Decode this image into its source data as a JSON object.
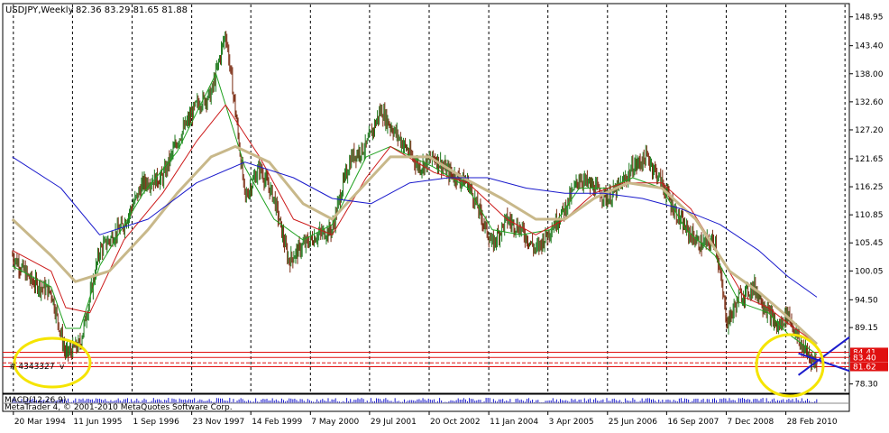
{
  "header": {
    "symbol": "USDJPY,Weekly",
    "ohlc": "82.36 83.29 81.65 81.88"
  },
  "overlay": {
    "order_text": "# 4343327",
    "order_suffix": "v"
  },
  "footer": {
    "indicator_text": "MACD(12,26,9)",
    "copyright": "MetaTrader 4, © 2001-2010 MetaQuotes Software Corp."
  },
  "colors": {
    "candle_up": "#1f7a1f",
    "candle_down": "#7a2a10",
    "ma_fast": "#1fa11f",
    "ma_mid": "#cc1a1a",
    "ma_slow": "#c8b88a",
    "ma_long": "#1a1acc",
    "circle": "#f5e400",
    "price_tag": "#e01010",
    "triangle": "#1a1acc"
  },
  "annotations": {
    "circles": [
      "highlight-1995-low",
      "highlight-2010-low"
    ]
  },
  "chart_data": {
    "type": "candlestick",
    "xlabel": "",
    "ylabel": "",
    "ylim": [
      76.5,
      151.5
    ],
    "x_tick_labels": [
      "20 Mar 1994",
      "11 Jun 1995",
      "1 Sep 1996",
      "23 Nov 1997",
      "14 Feb 1999",
      "7 May 2000",
      "29 Jul 2001",
      "20 Oct 2002",
      "11 Jan 2004",
      "3 Apr 2005",
      "25 Jun 2006",
      "16 Sep 2007",
      "7 Dec 2008",
      "28 Feb 2010"
    ],
    "y_tick_values": [
      78.3,
      83.62,
      89.15,
      94.5,
      100.05,
      105.45,
      110.85,
      116.25,
      121.65,
      127.2,
      132.6,
      138.0,
      143.4,
      148.95
    ],
    "y_tick_labels": [
      "78.30",
      "83.62",
      "89.15",
      "94.50",
      "100.05",
      "105.45",
      "110.85",
      "116.25",
      "121.65",
      "127.20",
      "132.60",
      "138.00",
      "143.40",
      "148.95"
    ],
    "price_tags": [
      {
        "value": 84.41,
        "label": "84.41"
      },
      {
        "value": 83.4,
        "label": "83.40"
      },
      {
        "value": 81.62,
        "label": "81.62"
      }
    ],
    "horizontal_levels": [
      84.41,
      83.4,
      82.36,
      81.62
    ],
    "price_path": {
      "x": [
        1994.2,
        1994.6,
        1995.0,
        1995.3,
        1995.6,
        1996.0,
        1996.5,
        1996.9,
        1997.3,
        1997.6,
        1998.0,
        1998.3,
        1998.6,
        1998.8,
        1999.0,
        1999.3,
        1999.6,
        1999.9,
        2000.2,
        2000.5,
        2000.8,
        2001.0,
        2001.2,
        2001.5,
        2001.8,
        2002.0,
        2002.3,
        2002.6,
        2002.9,
        2003.2,
        2003.6,
        2003.9,
        2004.1,
        2004.4,
        2004.7,
        2005.0,
        2005.3,
        2005.6,
        2005.9,
        2006.2,
        2006.5,
        2006.8,
        2007.0,
        2007.3,
        2007.6,
        2007.9,
        2008.1,
        2008.4,
        2008.7,
        2008.95,
        2009.2,
        2009.5,
        2009.8,
        2010.0,
        2010.2,
        2010.45,
        2010.62,
        2010.8
      ],
      "values": [
        103.0,
        98.0,
        96.0,
        84.0,
        86.0,
        104.0,
        109.0,
        117.0,
        118.0,
        125.0,
        132.0,
        134.0,
        146.0,
        131.0,
        114.0,
        120.0,
        114.0,
        102.0,
        105.0,
        107.0,
        108.0,
        116.0,
        122.0,
        124.0,
        131.0,
        128.0,
        124.0,
        120.0,
        122.0,
        119.0,
        117.0,
        110.0,
        105.0,
        110.0,
        108.0,
        104.0,
        108.0,
        112.0,
        118.0,
        116.0,
        114.0,
        117.0,
        120.0,
        122.0,
        117.0,
        111.0,
        108.0,
        105.0,
        106.0,
        90.0,
        95.0,
        97.0,
        92.0,
        89.0,
        92.0,
        86.0,
        84.0,
        82.0
      ]
    },
    "series": [
      {
        "x": [
          1994.2,
          1995.0,
          1995.3,
          1995.6,
          1996.0,
          1996.9,
          1997.6,
          1998.4,
          1999.0,
          1999.6,
          2000.2,
          2000.8,
          2001.5,
          2002.0,
          2002.9,
          2003.6,
          2004.1,
          2004.7,
          2005.3,
          2005.9,
          2006.5,
          2007.0,
          2007.6,
          2008.1,
          2008.7,
          2009.2,
          2009.8,
          2010.2,
          2010.8
        ],
        "values": [
          101.0,
          97.0,
          89.0,
          89.0,
          101.0,
          115.0,
          123.0,
          138.0,
          120.0,
          110.0,
          106.0,
          109.0,
          122.0,
          124.0,
          120.0,
          116.0,
          108.0,
          107.0,
          108.0,
          116.0,
          116.0,
          118.0,
          116.0,
          108.0,
          103.0,
          94.0,
          92.0,
          88.0,
          84.0
        ]
      },
      {
        "x": [
          1994.2,
          1995.0,
          1995.3,
          1995.8,
          1996.5,
          1997.3,
          1998.0,
          1998.6,
          1999.3,
          2000.0,
          2000.8,
          2001.5,
          2002.0,
          2002.9,
          2003.6,
          2004.4,
          2005.0,
          2005.6,
          2006.2,
          2006.8,
          2007.6,
          2008.2,
          2008.8,
          2009.3,
          2009.8,
          2010.2,
          2010.8
        ],
        "values": [
          104.0,
          100.0,
          93.0,
          92.0,
          106.0,
          115.0,
          125.0,
          132.0,
          122.0,
          110.0,
          107.0,
          118.0,
          124.0,
          119.0,
          117.0,
          110.0,
          107.0,
          110.0,
          115.0,
          117.0,
          117.0,
          112.0,
          103.0,
          95.0,
          93.0,
          90.0,
          86.0
        ]
      },
      {
        "x": [
          1994.2,
          1995.0,
          1995.5,
          1996.2,
          1997.0,
          1997.6,
          1998.3,
          1998.8,
          1999.5,
          2000.2,
          2000.8,
          2001.4,
          2002.0,
          2002.8,
          2003.5,
          2004.3,
          2005.0,
          2005.6,
          2006.2,
          2006.9,
          2007.6,
          2008.3,
          2009.0,
          2009.6,
          2010.1,
          2010.8
        ],
        "values": [
          110.0,
          103.0,
          98.0,
          100.0,
          108.0,
          115.0,
          122.0,
          124.0,
          121.0,
          113.0,
          110.0,
          116.0,
          122.0,
          122.0,
          118.0,
          114.0,
          110.0,
          110.0,
          114.0,
          117.0,
          116.0,
          110.0,
          100.0,
          96.0,
          92.0,
          86.0
        ]
      },
      {
        "x": [
          1994.2,
          1995.2,
          1996.0,
          1997.0,
          1998.0,
          1999.0,
          2000.0,
          2000.8,
          2001.6,
          2002.4,
          2003.2,
          2004.0,
          2004.8,
          2005.6,
          2006.4,
          2007.2,
          2008.0,
          2008.8,
          2009.6,
          2010.2,
          2010.8
        ],
        "values": [
          122.0,
          116.0,
          107.0,
          110.0,
          117.0,
          121.0,
          118.0,
          114.0,
          113.0,
          117.0,
          118.0,
          118.0,
          116.0,
          115.0,
          115.0,
          114.0,
          112.0,
          109.0,
          104.0,
          99.0,
          95.0
        ]
      }
    ]
  }
}
